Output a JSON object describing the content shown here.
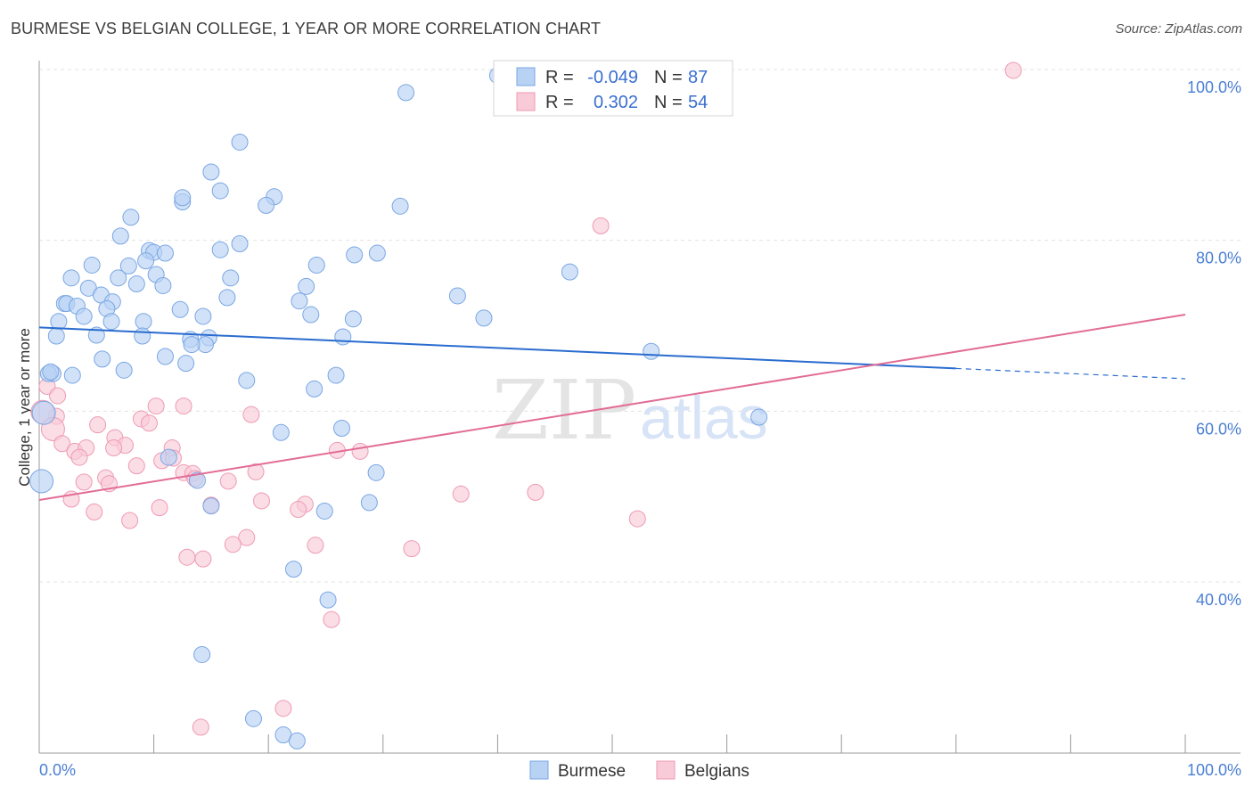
{
  "title": "BURMESE VS BELGIAN COLLEGE, 1 YEAR OR MORE CORRELATION CHART",
  "source": "Source: ZipAtlas.com",
  "watermark": {
    "zip": "ZIP",
    "atlas": "atlas"
  },
  "colors": {
    "burmese_fill": "#b8d2f4",
    "burmese_stroke": "#7aa6e3",
    "burmese_line": "#2a6ccf",
    "belgian_fill": "#f9cbd9",
    "belgian_stroke": "#ee9ab4",
    "belgian_line": "#e26c96",
    "grid": "#e3e3e3",
    "axis_text": "#4a7fd4"
  },
  "legend": {
    "rows": [
      {
        "r_label": "R =",
        "r_value": "-0.049",
        "n_label": "N =",
        "n_value": "87"
      },
      {
        "r_label": "R =",
        "r_value": "0.302",
        "n_label": "N =",
        "n_value": "54"
      }
    ]
  },
  "bottom_legend": [
    "Burmese",
    "Belgians"
  ],
  "chart_data": {
    "type": "scatter",
    "title": "BURMESE VS BELGIAN COLLEGE, 1 YEAR OR MORE CORRELATION CHART",
    "xlabel": "",
    "ylabel": "College, 1 year or more",
    "xlim": [
      0,
      100
    ],
    "ylim": [
      20,
      102
    ],
    "x_tick_labels": [
      "0.0%",
      "100.0%"
    ],
    "y_tick_labels": [
      "100.0%",
      "80.0%",
      "60.0%",
      "40.0%"
    ],
    "y_ticks": [
      100,
      80,
      60,
      40
    ],
    "grid": true,
    "legend_position": "top-center",
    "series": [
      {
        "name": "Burmese",
        "r": -0.049,
        "n": 87,
        "trend": {
          "x0": 0,
          "y0": 69.8,
          "x1": 80,
          "y1": 65.0,
          "dashed_to_x": 100,
          "dashed_to_y": 63.8
        },
        "points": [
          [
            40.0,
            99.3
          ],
          [
            32.0,
            97.3
          ],
          [
            17.5,
            91.5
          ],
          [
            15.0,
            88.0
          ],
          [
            15.8,
            85.8
          ],
          [
            20.5,
            85.1
          ],
          [
            12.5,
            84.5
          ],
          [
            19.8,
            84.1
          ],
          [
            31.5,
            84.0
          ],
          [
            8.0,
            82.7
          ],
          [
            7.1,
            80.5
          ],
          [
            17.5,
            79.6
          ],
          [
            15.8,
            78.9
          ],
          [
            9.6,
            78.8
          ],
          [
            10.0,
            78.6
          ],
          [
            11.0,
            78.5
          ],
          [
            27.5,
            78.3
          ],
          [
            29.5,
            78.5
          ],
          [
            9.3,
            77.6
          ],
          [
            24.2,
            77.1
          ],
          [
            4.6,
            77.1
          ],
          [
            7.8,
            77.0
          ],
          [
            10.2,
            76.0
          ],
          [
            46.3,
            76.3
          ],
          [
            2.8,
            75.6
          ],
          [
            6.9,
            75.6
          ],
          [
            16.7,
            75.6
          ],
          [
            8.5,
            74.9
          ],
          [
            10.8,
            74.7
          ],
          [
            4.3,
            74.4
          ],
          [
            23.3,
            74.6
          ],
          [
            5.4,
            73.6
          ],
          [
            36.5,
            73.5
          ],
          [
            16.4,
            73.3
          ],
          [
            22.7,
            72.9
          ],
          [
            2.2,
            72.6
          ],
          [
            2.4,
            72.6
          ],
          [
            6.4,
            72.8
          ],
          [
            3.3,
            72.3
          ],
          [
            5.9,
            72.0
          ],
          [
            12.3,
            71.9
          ],
          [
            3.9,
            71.1
          ],
          [
            23.7,
            71.3
          ],
          [
            14.3,
            71.1
          ],
          [
            38.8,
            70.9
          ],
          [
            27.4,
            70.8
          ],
          [
            1.7,
            70.5
          ],
          [
            6.3,
            70.5
          ],
          [
            9.1,
            70.5
          ],
          [
            1.5,
            68.8
          ],
          [
            5.0,
            68.9
          ],
          [
            9.0,
            68.8
          ],
          [
            26.5,
            68.7
          ],
          [
            13.2,
            68.4
          ],
          [
            14.8,
            68.6
          ],
          [
            14.5,
            67.8
          ],
          [
            13.3,
            67.8
          ],
          [
            53.4,
            67.0
          ],
          [
            5.5,
            66.1
          ],
          [
            11.0,
            66.4
          ],
          [
            12.8,
            65.6
          ],
          [
            7.4,
            64.8
          ],
          [
            1.2,
            64.4
          ],
          [
            2.9,
            64.2
          ],
          [
            0.8,
            64.4
          ],
          [
            25.9,
            64.2
          ],
          [
            18.1,
            63.6
          ],
          [
            24.0,
            62.6
          ],
          [
            0.4,
            59.8
          ],
          [
            62.8,
            59.3
          ],
          [
            26.4,
            58.0
          ],
          [
            21.1,
            57.5
          ],
          [
            11.3,
            54.6
          ],
          [
            29.4,
            52.8
          ],
          [
            13.8,
            51.9
          ],
          [
            0.2,
            51.8
          ],
          [
            15.0,
            48.9
          ],
          [
            28.8,
            49.3
          ],
          [
            24.9,
            48.3
          ],
          [
            22.2,
            41.5
          ],
          [
            25.2,
            37.9
          ],
          [
            14.2,
            31.5
          ],
          [
            18.7,
            24.0
          ],
          [
            21.3,
            22.1
          ],
          [
            22.5,
            21.4
          ],
          [
            1.0,
            64.6
          ],
          [
            12.5,
            85.0
          ]
        ]
      },
      {
        "name": "Belgians",
        "r": 0.302,
        "n": 54,
        "trend": {
          "x0": 0,
          "y0": 49.6,
          "x1": 100,
          "y1": 71.3
        },
        "points": [
          [
            85.0,
            99.9
          ],
          [
            49.0,
            81.7
          ],
          [
            0.7,
            62.9
          ],
          [
            12.6,
            60.6
          ],
          [
            10.2,
            60.6
          ],
          [
            18.5,
            59.6
          ],
          [
            1.5,
            59.4
          ],
          [
            0.3,
            59.9
          ],
          [
            8.9,
            59.1
          ],
          [
            9.6,
            58.6
          ],
          [
            5.1,
            58.4
          ],
          [
            1.2,
            57.9
          ],
          [
            6.6,
            56.9
          ],
          [
            2.0,
            56.2
          ],
          [
            7.5,
            56.0
          ],
          [
            11.6,
            55.7
          ],
          [
            3.1,
            55.3
          ],
          [
            6.5,
            55.7
          ],
          [
            4.1,
            55.7
          ],
          [
            26.0,
            55.4
          ],
          [
            28.0,
            55.3
          ],
          [
            3.5,
            54.6
          ],
          [
            10.7,
            54.2
          ],
          [
            11.7,
            54.5
          ],
          [
            8.5,
            53.6
          ],
          [
            18.9,
            52.9
          ],
          [
            12.6,
            52.8
          ],
          [
            13.4,
            52.7
          ],
          [
            5.8,
            52.2
          ],
          [
            13.6,
            52.1
          ],
          [
            3.9,
            51.7
          ],
          [
            6.1,
            51.5
          ],
          [
            16.5,
            51.8
          ],
          [
            36.8,
            50.3
          ],
          [
            43.3,
            50.5
          ],
          [
            19.4,
            49.5
          ],
          [
            2.8,
            49.7
          ],
          [
            15.0,
            49.0
          ],
          [
            23.2,
            49.1
          ],
          [
            22.6,
            48.5
          ],
          [
            10.5,
            48.7
          ],
          [
            4.8,
            48.2
          ],
          [
            52.2,
            47.4
          ],
          [
            7.9,
            47.2
          ],
          [
            18.1,
            45.2
          ],
          [
            16.9,
            44.4
          ],
          [
            24.1,
            44.3
          ],
          [
            32.5,
            43.9
          ],
          [
            12.9,
            42.9
          ],
          [
            14.3,
            42.7
          ],
          [
            25.5,
            35.6
          ],
          [
            21.3,
            25.2
          ],
          [
            14.1,
            23.0
          ],
          [
            1.6,
            61.8
          ]
        ]
      }
    ]
  }
}
